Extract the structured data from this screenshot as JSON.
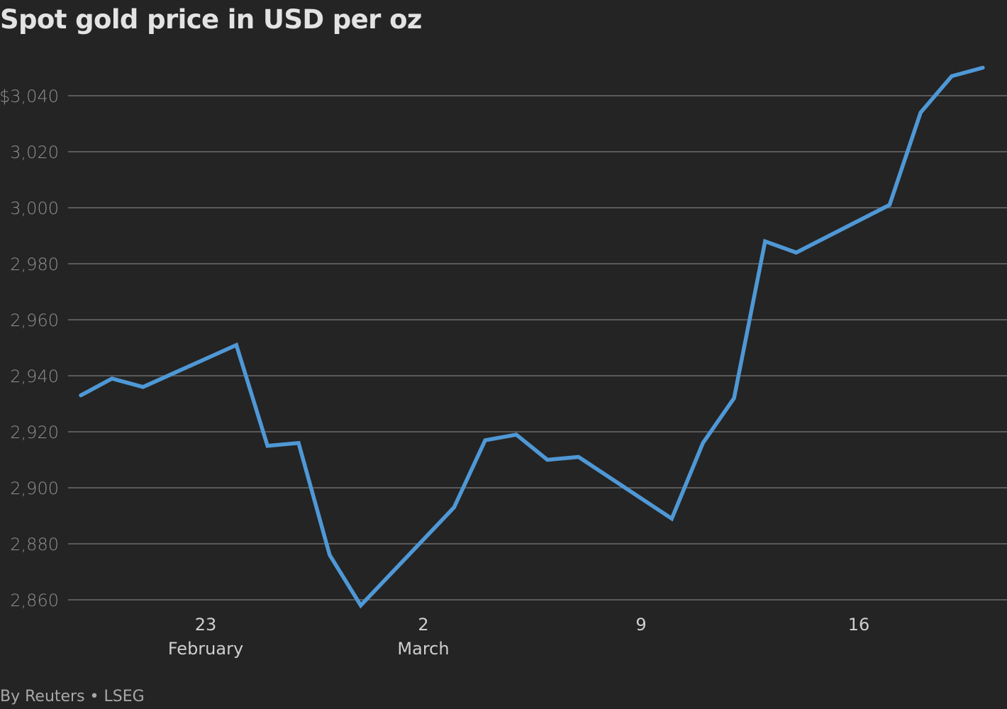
{
  "title": "Spot gold price in USD per oz",
  "source": "By Reuters • LSEG",
  "colors": {
    "background": "#242424",
    "line": "#4f98d6",
    "grid": "#5a5a5a",
    "title": "#e3e3e3",
    "y_tick": "#8e8e8e",
    "x_tick": "#cfcfcf",
    "source": "#a8a8a8"
  },
  "chart_data": {
    "type": "line",
    "title": "Spot gold price in USD per oz",
    "xlabel": "",
    "ylabel": "",
    "ylim": [
      2860,
      3050
    ],
    "grid": true,
    "legend": "none",
    "y_ticks": [
      {
        "value": 3040,
        "label": "$3,040"
      },
      {
        "value": 3020,
        "label": "3,020"
      },
      {
        "value": 3000,
        "label": "3,000"
      },
      {
        "value": 2980,
        "label": "2,980"
      },
      {
        "value": 2960,
        "label": "2,960"
      },
      {
        "value": 2940,
        "label": "2,940"
      },
      {
        "value": 2920,
        "label": "2,920"
      },
      {
        "value": 2900,
        "label": "2,900"
      },
      {
        "value": 2880,
        "label": "2,880"
      },
      {
        "value": 2860,
        "label": "2,860"
      }
    ],
    "x_ticks": [
      {
        "day_index": 5,
        "label": "23",
        "sublabel": "February"
      },
      {
        "day_index": 12,
        "label": "2",
        "sublabel": "March"
      },
      {
        "day_index": 19,
        "label": "9",
        "sublabel": ""
      },
      {
        "day_index": 26,
        "label": "16",
        "sublabel": ""
      }
    ],
    "x_domain": [
      0,
      29.5
    ],
    "series": [
      {
        "name": "Spot gold",
        "points": [
          {
            "day_index": 0,
            "date": "Feb 18",
            "value": 2933
          },
          {
            "day_index": 1,
            "date": "Feb 19",
            "value": 2939
          },
          {
            "day_index": 2,
            "date": "Feb 20",
            "value": 2936
          },
          {
            "day_index": 5,
            "date": "Feb 23",
            "value": 2951
          },
          {
            "day_index": 6,
            "date": "Feb 24",
            "value": 2915
          },
          {
            "day_index": 7,
            "date": "Feb 25",
            "value": 2916
          },
          {
            "day_index": 8,
            "date": "Feb 26",
            "value": 2876
          },
          {
            "day_index": 9,
            "date": "Feb 27",
            "value": 2858
          },
          {
            "day_index": 12,
            "date": "Mar 2",
            "value": 2893
          },
          {
            "day_index": 13,
            "date": "Mar 3",
            "value": 2917
          },
          {
            "day_index": 14,
            "date": "Mar 4",
            "value": 2919
          },
          {
            "day_index": 15,
            "date": "Mar 5",
            "value": 2910
          },
          {
            "day_index": 16,
            "date": "Mar 6",
            "value": 2911
          },
          {
            "day_index": 19,
            "date": "Mar 9",
            "value": 2889
          },
          {
            "day_index": 20,
            "date": "Mar 10",
            "value": 2916
          },
          {
            "day_index": 21,
            "date": "Mar 11",
            "value": 2932
          },
          {
            "day_index": 22,
            "date": "Mar 12",
            "value": 2988
          },
          {
            "day_index": 23,
            "date": "Mar 13",
            "value": 2984
          },
          {
            "day_index": 26,
            "date": "Mar 16",
            "value": 3001
          },
          {
            "day_index": 27,
            "date": "Mar 17",
            "value": 3034
          },
          {
            "day_index": 28,
            "date": "Mar 18",
            "value": 3047
          },
          {
            "day_index": 29,
            "date": "Mar 19",
            "value": 3050
          }
        ]
      }
    ]
  }
}
